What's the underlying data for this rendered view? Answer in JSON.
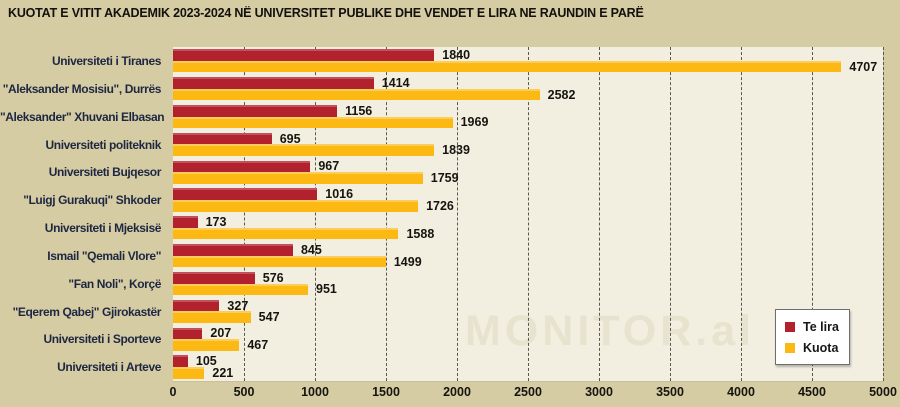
{
  "title": "KUOTAT E VITIT AKADEMIK 2023-2024 NË UNIVERSITET PUBLIKE DHE VENDET E LIRA NE RAUNDIN E PARË",
  "watermark": "MONITOR.al",
  "colors": {
    "page_bg": "#D6CCA3",
    "plot_bg": "#F2EFE1",
    "te_lira": "#B2212E",
    "kuota": "#FCB813",
    "category_text": "#1d2742",
    "gridline": "#5a584c"
  },
  "legend": {
    "position": "bottom-right",
    "items": [
      {
        "label": "Te lira",
        "color": "#B2212E"
      },
      {
        "label": "Kuota",
        "color": "#FCB813"
      }
    ]
  },
  "chart_data": {
    "type": "bar",
    "orientation": "horizontal",
    "title": "KUOTAT E VITIT AKADEMIK 2023-2024 NË UNIVERSITET PUBLIKE DHE VENDET E LIRA NE RAUNDIN E PARË",
    "categories": [
      "Universiteti i Tiranes",
      "\"Aleksander Mosisiu\", Durrës",
      "\"Aleksander\" Xhuvani Elbasan",
      "Universiteti politeknik",
      "Universiteti Bujqesor",
      "\"Luigj Gurakuqi\" Shkoder",
      "Universiteti i Mjeksisë",
      "Ismail \"Qemali Vlore\"",
      "\"Fan Noli\", Korçë",
      "\"Eqerem Qabej\" Gjirokastër",
      "Universiteti i Sporteve",
      "Universiteti i Arteve"
    ],
    "series": [
      {
        "name": "Te lira",
        "color": "#B2212E",
        "values": [
          1840,
          1414,
          1156,
          695,
          967,
          1016,
          173,
          845,
          576,
          327,
          207,
          105
        ]
      },
      {
        "name": "Kuota",
        "color": "#FCB813",
        "values": [
          4707,
          2582,
          1969,
          1839,
          1759,
          1726,
          1588,
          1499,
          951,
          547,
          467,
          221
        ]
      }
    ],
    "xlim": [
      0,
      5000
    ],
    "x_ticks": [
      0,
      500,
      1000,
      1500,
      2000,
      2500,
      3000,
      3500,
      4000,
      4500,
      5000
    ],
    "grid": "vertical-dashed",
    "data_labels": true,
    "legend_position": "bottom-right"
  }
}
